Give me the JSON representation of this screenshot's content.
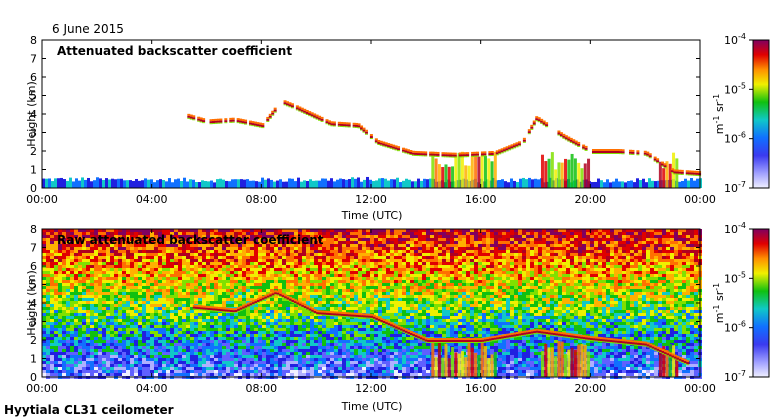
{
  "header": {
    "date": "6 June 2015"
  },
  "footer": {
    "site": "Hyytiala CL31 ceilometer"
  },
  "chart_data": [
    {
      "type": "heatmap",
      "title": "Attenuated backscatter coefficient",
      "xlabel": "Time (UTC)",
      "ylabel": "Height (km)",
      "xticks": [
        "00:00",
        "04:00",
        "08:00",
        "12:00",
        "16:00",
        "20:00",
        "00:00"
      ],
      "xlim": [
        0,
        24
      ],
      "yticks": [
        0,
        1,
        2,
        3,
        4,
        5,
        6,
        7,
        8
      ],
      "ylim": [
        0,
        8
      ],
      "colorbar": {
        "label_base": "m",
        "label_exp1": "-1",
        "label_mid": " sr",
        "label_exp2": "-1",
        "ticks": [
          {
            "value": -4,
            "base": "10",
            "exp": "-4"
          },
          {
            "value": -5,
            "base": "10",
            "exp": "-5"
          },
          {
            "value": -6,
            "base": "10",
            "exp": "-6"
          },
          {
            "value": -7,
            "base": "10",
            "exp": "-7"
          }
        ],
        "range_log10": [
          -7,
          -4
        ]
      },
      "features": {
        "boundary_layer": [
          [
            0,
            0.55
          ],
          [
            6,
            0.5
          ],
          [
            12,
            0.55
          ],
          [
            14,
            0.5
          ],
          [
            24,
            0.5
          ]
        ],
        "cloud_layer": [
          [
            5.3,
            3.9
          ],
          [
            6,
            3.6
          ],
          [
            7,
            3.7
          ],
          [
            8,
            3.4
          ],
          [
            8.7,
            4.7
          ],
          [
            9.2,
            4.4
          ],
          [
            10.5,
            3.5
          ],
          [
            11.5,
            3.4
          ],
          [
            12.2,
            2.5
          ],
          [
            13.5,
            1.9
          ],
          [
            15,
            1.8
          ],
          [
            16.5,
            1.9
          ],
          [
            17.5,
            2.5
          ],
          [
            18,
            3.8
          ],
          [
            19,
            2.8
          ],
          [
            20,
            2.0
          ],
          [
            21,
            2.0
          ],
          [
            22,
            1.9
          ],
          [
            23,
            0.9
          ],
          [
            24,
            0.8
          ]
        ],
        "precipitation": [
          [
            14.2,
            16.5
          ],
          [
            18.2,
            20.0
          ],
          [
            22.5,
            23.2
          ]
        ]
      }
    },
    {
      "type": "heatmap",
      "title": "Raw attenuated backscatter coefficient",
      "xlabel": "Time (UTC)",
      "ylabel": "Height (km)",
      "xticks": [
        "00:00",
        "04:00",
        "08:00",
        "12:00",
        "16:00",
        "20:00",
        "00:00"
      ],
      "xlim": [
        0,
        24
      ],
      "yticks": [
        0,
        1,
        2,
        3,
        4,
        5,
        6,
        7,
        8
      ],
      "ylim": [
        0,
        8
      ],
      "colorbar": {
        "label_base": "m",
        "label_exp1": "-1",
        "label_mid": " sr",
        "label_exp2": "-1",
        "ticks": [
          {
            "value": -4,
            "base": "10",
            "exp": "-4"
          },
          {
            "value": -5,
            "base": "10",
            "exp": "-5"
          },
          {
            "value": -6,
            "base": "10",
            "exp": "-6"
          },
          {
            "value": -7,
            "base": "10",
            "exp": "-7"
          }
        ],
        "range_log10": [
          -7,
          -4
        ]
      },
      "features": {
        "noise_gradient": "increasing with height",
        "cloud_layer": [
          [
            5.5,
            3.8
          ],
          [
            7,
            3.6
          ],
          [
            8.5,
            4.6
          ],
          [
            10,
            3.5
          ],
          [
            12,
            3.3
          ],
          [
            14,
            2.0
          ],
          [
            16,
            2.0
          ],
          [
            18,
            2.5
          ],
          [
            20,
            2.1
          ],
          [
            22,
            1.8
          ],
          [
            23.5,
            0.8
          ]
        ],
        "precipitation": [
          [
            14.2,
            16.5
          ],
          [
            18.2,
            20.0
          ],
          [
            22.5,
            23.2
          ]
        ]
      }
    }
  ]
}
